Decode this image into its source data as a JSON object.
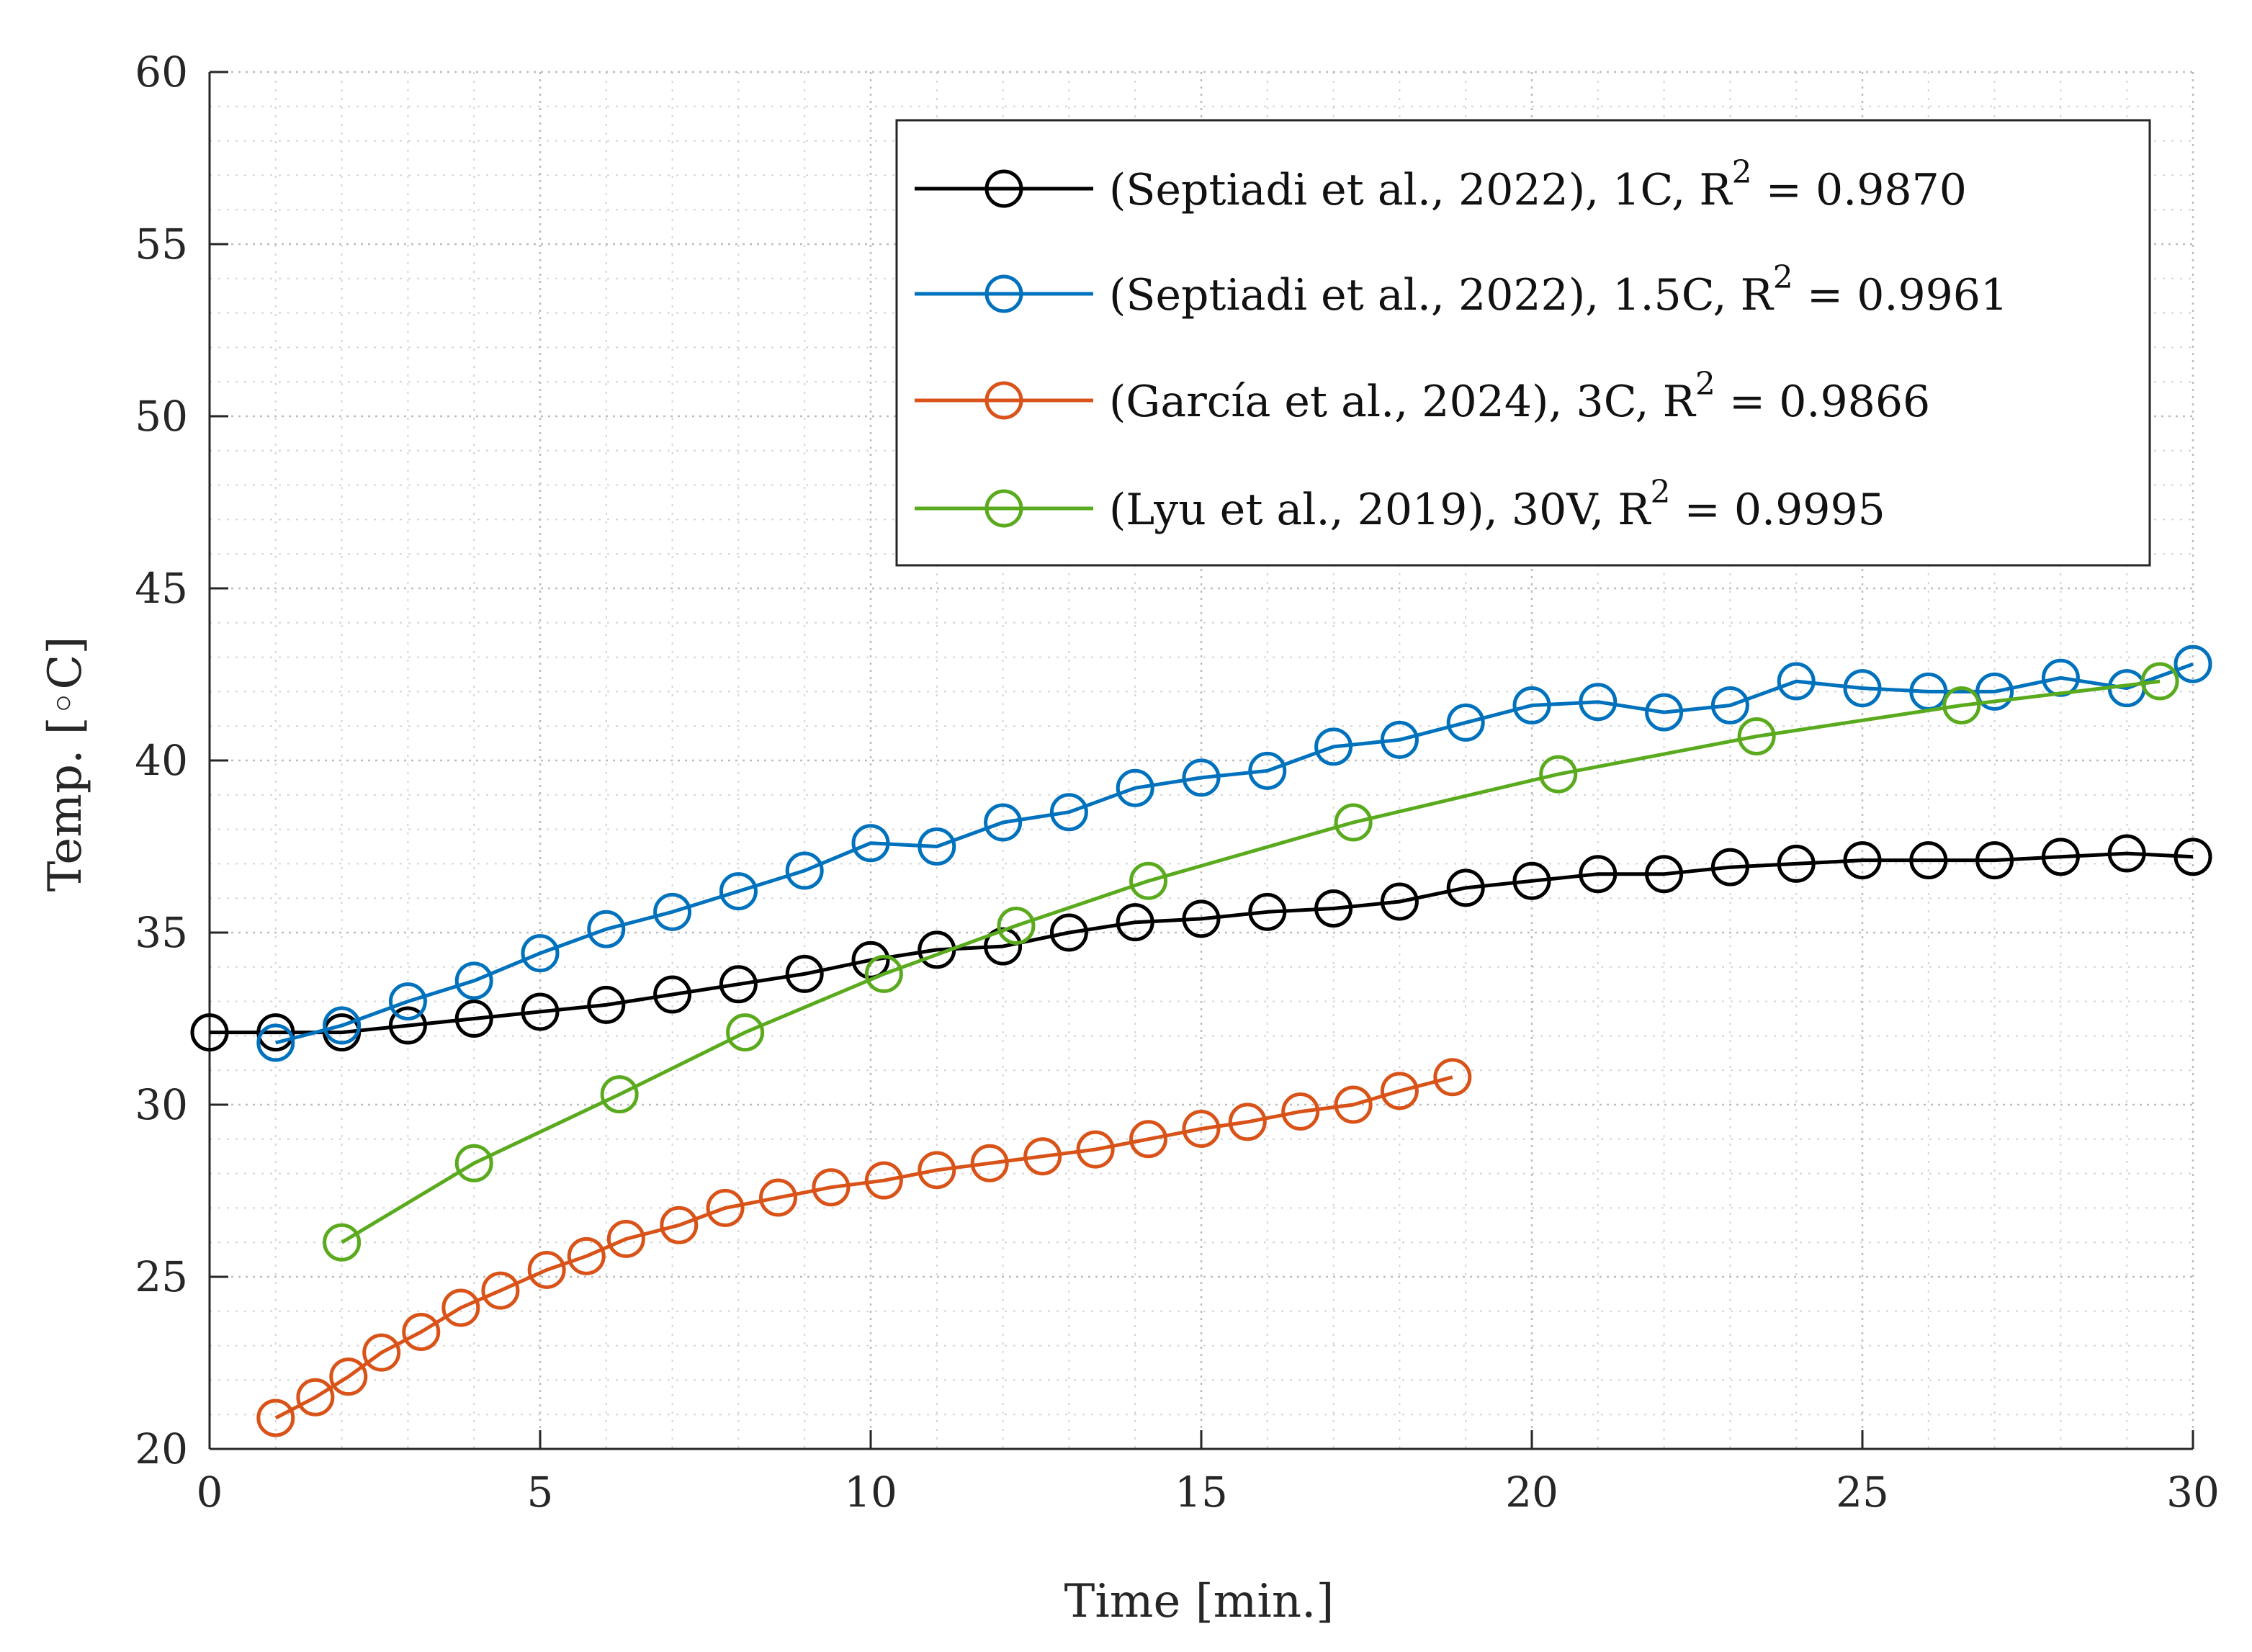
{
  "chart_data": {
    "type": "line",
    "title": "",
    "xlabel": "Time [min.]",
    "ylabel": "Temp. [◦C]",
    "xlim": [
      0,
      30
    ],
    "ylim": [
      20,
      60
    ],
    "xticks": [
      0,
      5,
      10,
      15,
      20,
      25,
      30
    ],
    "yticks": [
      20,
      25,
      30,
      35,
      40,
      45,
      50,
      55,
      60
    ],
    "x_minor_step": 1,
    "y_minor_step": 1,
    "grid": true,
    "legend_position": "top-right",
    "series": [
      {
        "name": "(Septiadi et al., 2022), 1C, R",
        "r2_sup": "2",
        "r2_value": " = 0.9870",
        "color": "#000000",
        "x": [
          0,
          1,
          2,
          3,
          4,
          5,
          6,
          7,
          8,
          9,
          10,
          11,
          12,
          13,
          14,
          15,
          16,
          17,
          18,
          19,
          20,
          21,
          22,
          23,
          24,
          25,
          26,
          27,
          28,
          29,
          30
        ],
        "y": [
          32.1,
          32.1,
          32.1,
          32.3,
          32.5,
          32.7,
          32.9,
          33.2,
          33.5,
          33.8,
          34.2,
          34.5,
          34.6,
          35.0,
          35.3,
          35.4,
          35.6,
          35.7,
          35.9,
          36.3,
          36.5,
          36.7,
          36.7,
          36.9,
          37.0,
          37.1,
          37.1,
          37.1,
          37.2,
          37.3,
          37.2
        ]
      },
      {
        "name": "(Septiadi et al., 2022), 1.5C, R",
        "r2_sup": "2",
        "r2_value": " = 0.9961",
        "color": "#0072BD",
        "x": [
          1,
          2,
          3,
          4,
          5,
          6,
          7,
          8,
          9,
          10,
          11,
          12,
          13,
          14,
          15,
          16,
          17,
          18,
          19,
          20,
          21,
          22,
          23,
          24,
          25,
          26,
          27,
          28,
          29,
          30
        ],
        "y": [
          31.8,
          32.3,
          33.0,
          33.6,
          34.4,
          35.1,
          35.6,
          36.2,
          36.8,
          37.6,
          37.5,
          38.2,
          38.5,
          39.2,
          39.5,
          39.7,
          40.4,
          40.6,
          41.1,
          41.6,
          41.7,
          41.4,
          41.6,
          42.3,
          42.1,
          42.0,
          42.0,
          42.4,
          42.1,
          42.8
        ]
      },
      {
        "name": "(García et al., 2024), 3C, R",
        "r2_sup": "2",
        "r2_value": " = 0.9866",
        "color": "#D95319",
        "x": [
          1.0,
          1.6,
          2.1,
          2.6,
          3.2,
          3.8,
          4.4,
          5.1,
          5.7,
          6.3,
          7.1,
          7.8,
          8.6,
          9.4,
          10.2,
          11.0,
          11.8,
          12.6,
          13.4,
          14.2,
          15.0,
          15.7,
          16.5,
          17.3,
          18.0,
          18.8
        ],
        "y": [
          20.9,
          21.5,
          22.1,
          22.8,
          23.4,
          24.1,
          24.6,
          25.2,
          25.6,
          26.1,
          26.5,
          27.0,
          27.3,
          27.6,
          27.8,
          28.1,
          28.3,
          28.5,
          28.7,
          29.0,
          29.3,
          29.5,
          29.8,
          30.0,
          30.4,
          30.8
        ]
      },
      {
        "name": "(Lyu et al., 2019), 30V, R",
        "r2_sup": "2",
        "r2_value": " = 0.9995",
        "color": "#5AAA1E",
        "x": [
          2.0,
          4.0,
          6.2,
          8.1,
          10.2,
          12.2,
          14.2,
          17.3,
          20.4,
          23.4,
          26.5,
          29.5
        ],
        "y": [
          26.0,
          28.3,
          30.3,
          32.1,
          33.8,
          35.2,
          36.5,
          38.2,
          39.6,
          40.7,
          41.6,
          42.3
        ]
      }
    ]
  }
}
